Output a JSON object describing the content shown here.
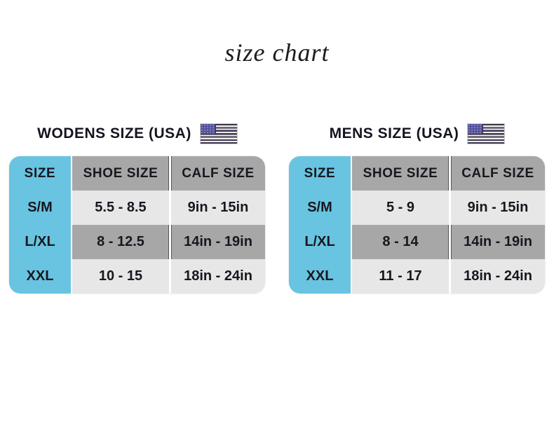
{
  "title": "size chart",
  "sections": [
    {
      "heading": "WODENS SIZE  (USA)",
      "flag_icon": "usa-flag"
    },
    {
      "heading": "MENS SIZE (USA)",
      "flag_icon": "usa-flag"
    }
  ],
  "chart_data": [
    {
      "type": "table",
      "title": "WODENS SIZE (USA)",
      "columns": [
        "SIZE",
        "SHOE  SIZE",
        "CALF SIZE"
      ],
      "rows": [
        [
          "S/M",
          "5.5 - 8.5",
          "9in - 15in"
        ],
        [
          "L/XL",
          "8 - 12.5",
          "14in - 19in"
        ],
        [
          "XXL",
          "10 - 15",
          "18in - 24in"
        ]
      ]
    },
    {
      "type": "table",
      "title": "MENS SIZE (USA)",
      "columns": [
        "SIZE",
        "SHOE  SIZE",
        "CALF SIZE"
      ],
      "rows": [
        [
          "S/M",
          "5 - 9",
          "9in - 15in"
        ],
        [
          "L/XL",
          "8 - 14",
          "14in - 19in"
        ],
        [
          "XXL",
          "11 - 17",
          "18in - 24in"
        ]
      ]
    }
  ],
  "colors": {
    "size_column_blue": "#68c4e0",
    "header_row_gray": "#a7a7a7",
    "alt_row_light": "#e7e7e7",
    "text_dark": "#17171f",
    "flag_stripe": "#3c3750",
    "flag_canton": "#54519c"
  }
}
